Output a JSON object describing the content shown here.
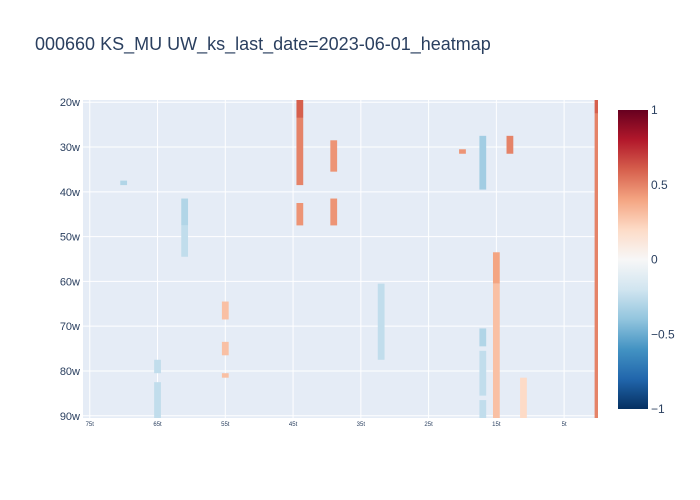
{
  "chart_data": {
    "type": "heatmap",
    "title": "000660 KS_MU UW_ks_last_date=2023-06-01_heatmap",
    "xlabel": "",
    "ylabel": "",
    "x_range": [
      76,
      0
    ],
    "x_ticks": [
      {
        "value": 75,
        "label": "75t"
      },
      {
        "value": 65,
        "label": "65t"
      },
      {
        "value": 55,
        "label": "55t"
      },
      {
        "value": 45,
        "label": "45t"
      },
      {
        "value": 35,
        "label": "35t"
      },
      {
        "value": 25,
        "label": "25t"
      },
      {
        "value": 15,
        "label": "15t"
      },
      {
        "value": 5,
        "label": "5t"
      }
    ],
    "y_range": [
      20,
      90
    ],
    "y_ticks": [
      {
        "value": 20,
        "label": "20w"
      },
      {
        "value": 30,
        "label": "30w"
      },
      {
        "value": 40,
        "label": "40w"
      },
      {
        "value": 50,
        "label": "50w"
      },
      {
        "value": 60,
        "label": "60w"
      },
      {
        "value": 70,
        "label": "70w"
      },
      {
        "value": 80,
        "label": "80w"
      },
      {
        "value": 90,
        "label": "90w"
      }
    ],
    "colorscale": "RdBu",
    "zmin": -1,
    "zmax": 1,
    "colorbar_ticks": [
      {
        "value": 1,
        "label": "1"
      },
      {
        "value": 0.5,
        "label": "0.5"
      },
      {
        "value": 0,
        "label": "0"
      },
      {
        "value": -0.5,
        "label": "−0.5"
      },
      {
        "value": -1,
        "label": "−1"
      }
    ],
    "grid": true,
    "legend": "colorbar-right",
    "cells": [
      {
        "x": 70,
        "y0": 37.5,
        "y1": 38.5,
        "z": -0.3
      },
      {
        "x": 65,
        "y0": 77.5,
        "y1": 80.5,
        "z": -0.25
      },
      {
        "x": 65,
        "y0": 82.5,
        "y1": 90.5,
        "z": -0.25
      },
      {
        "x": 61,
        "y0": 41.5,
        "y1": 47.5,
        "z": -0.3
      },
      {
        "x": 61,
        "y0": 47.5,
        "y1": 54.5,
        "z": -0.25
      },
      {
        "x": 55,
        "y0": 64.5,
        "y1": 68.5,
        "z": 0.3
      },
      {
        "x": 55,
        "y0": 73.5,
        "y1": 76.5,
        "z": 0.3
      },
      {
        "x": 55,
        "y0": 80.5,
        "y1": 81.5,
        "z": 0.3
      },
      {
        "x": 44,
        "y0": 19.5,
        "y1": 23.5,
        "z": 0.6
      },
      {
        "x": 44,
        "y0": 23.5,
        "y1": 38.5,
        "z": 0.5
      },
      {
        "x": 44,
        "y0": 42.5,
        "y1": 47.5,
        "z": 0.45
      },
      {
        "x": 39,
        "y0": 28.5,
        "y1": 35.5,
        "z": 0.45
      },
      {
        "x": 39,
        "y0": 41.5,
        "y1": 47.5,
        "z": 0.45
      },
      {
        "x": 32,
        "y0": 60.5,
        "y1": 77.5,
        "z": -0.25
      },
      {
        "x": 20,
        "y0": 30.5,
        "y1": 31.5,
        "z": 0.45
      },
      {
        "x": 17,
        "y0": 27.5,
        "y1": 39.5,
        "z": -0.35
      },
      {
        "x": 17,
        "y0": 70.5,
        "y1": 74.5,
        "z": -0.3
      },
      {
        "x": 17,
        "y0": 75.5,
        "y1": 85.5,
        "z": -0.25
      },
      {
        "x": 17,
        "y0": 86.5,
        "y1": 90.5,
        "z": -0.25
      },
      {
        "x": 15,
        "y0": 53.5,
        "y1": 60.5,
        "z": 0.4
      },
      {
        "x": 15,
        "y0": 60.5,
        "y1": 90.5,
        "z": 0.3
      },
      {
        "x": 13,
        "y0": 27.5,
        "y1": 31.5,
        "z": 0.5
      },
      {
        "x": 11,
        "y0": 81.5,
        "y1": 90.5,
        "z": 0.2
      },
      {
        "x": 0,
        "y0": 19.5,
        "y1": 22.5,
        "z": 0.6
      },
      {
        "x": 0,
        "y0": 22.5,
        "y1": 90.5,
        "z": 0.5
      }
    ]
  }
}
